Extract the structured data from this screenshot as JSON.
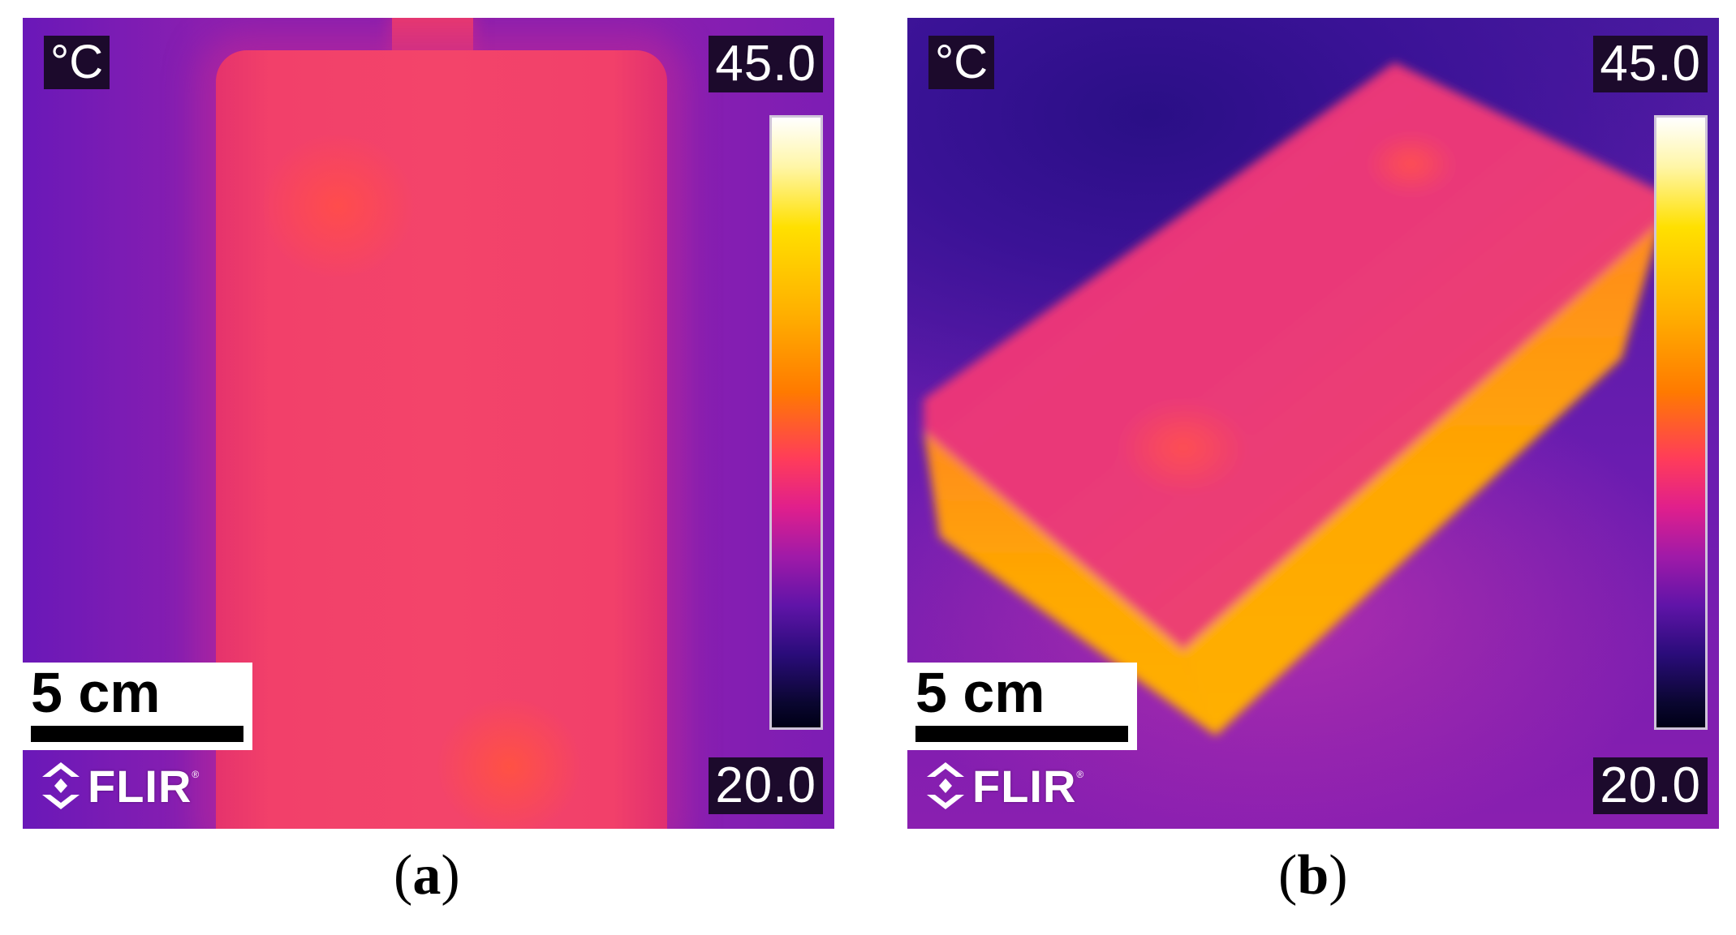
{
  "panels": [
    {
      "id": "a",
      "unit": "°C",
      "scale_max": "45.0",
      "scale_min": "20.0",
      "scale_bar_label": "5 cm",
      "brand": "FLIR",
      "caption_open": "(",
      "caption_letter": "a",
      "caption_close": ")"
    },
    {
      "id": "b",
      "unit": "°C",
      "scale_max": "45.0",
      "scale_min": "20.0",
      "scale_bar_label": "5 cm",
      "brand": "FLIR",
      "caption_open": "(",
      "caption_letter": "b",
      "caption_close": ")"
    }
  ],
  "colors": {
    "colorbar_top": "#ffffff",
    "colorbar_bottom": "#000016",
    "warm_object": "#f3446a",
    "edge_hot": "#ffa000",
    "background_cool": "#7c1cb0"
  }
}
